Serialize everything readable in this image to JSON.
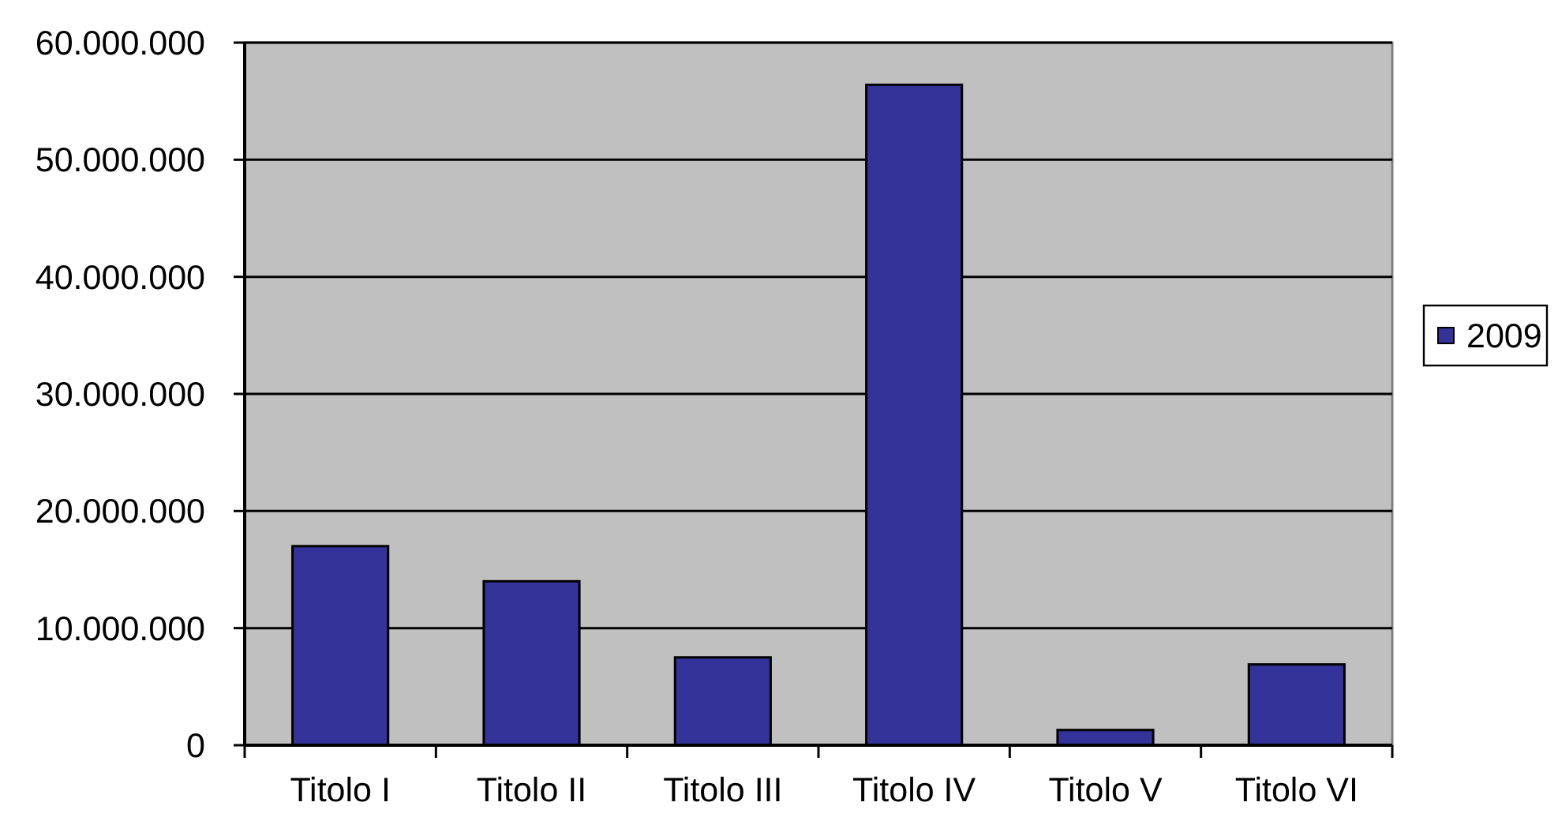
{
  "chart_data": {
    "type": "bar",
    "categories": [
      "Titolo I",
      "Titolo II",
      "Titolo III",
      "Titolo IV",
      "Titolo V",
      "Titolo VI"
    ],
    "series": [
      {
        "name": "2009",
        "color": "#333399",
        "values": [
          17000000,
          14000000,
          7500000,
          56400000,
          1300000,
          6900000
        ]
      }
    ],
    "ylim": [
      0,
      60000000
    ],
    "yticks": [
      0,
      {
        "value": 10000000,
        "label": "10.000.000"
      },
      {
        "value": 20000000,
        "label": "20.000.000"
      },
      {
        "value": 30000000,
        "label": "30.000.000"
      },
      {
        "value": 40000000,
        "label": "40.000.000"
      },
      {
        "value": 50000000,
        "label": "50.000.000"
      },
      {
        "value": 60000000,
        "label": "60.000.000"
      }
    ],
    "grid": "y",
    "legend": "right"
  }
}
